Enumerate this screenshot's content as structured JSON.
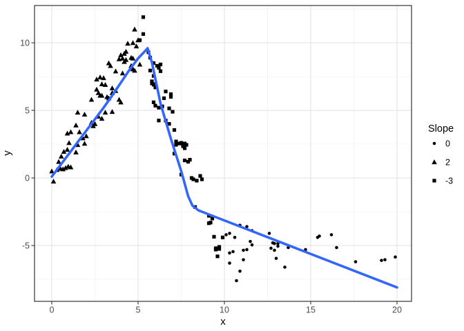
{
  "chart_data": {
    "type": "scatter",
    "title": "",
    "xlabel": "x",
    "ylabel": "y",
    "xlim": [
      -1,
      20.84
    ],
    "ylim": [
      -9.13,
      12.76
    ],
    "x_major_ticks": [
      0,
      5,
      10,
      15,
      20
    ],
    "y_major_ticks": [
      -5,
      0,
      5,
      10
    ],
    "x_minor_ticks": [
      2.5,
      7.5,
      12.5,
      17.5
    ],
    "y_minor_ticks": [
      -7.5,
      -2.5,
      2.5,
      7.5,
      12.5
    ],
    "grid": true,
    "colors": {
      "background": "#ffffff",
      "panel_background": "#ffffff",
      "panel_border": "#333333",
      "grid_major": "#e4e4e4",
      "grid_minor": "#f0f0f0",
      "points": "#000000",
      "smooth_line": "#3366ff",
      "tick_label": "#4d4d4d"
    },
    "legend": {
      "title": "Slope",
      "position": "right",
      "entries": [
        {
          "label": "0",
          "shape": "circle"
        },
        {
          "label": "2",
          "shape": "triangle"
        },
        {
          "label": "-3",
          "shape": "square"
        }
      ]
    },
    "series": [
      {
        "name": "2",
        "shape": "triangle",
        "points": [
          [
            0.0,
            0.5
          ],
          [
            0.1,
            -0.25
          ],
          [
            0.3,
            0.6
          ],
          [
            0.5,
            0.7
          ],
          [
            0.65,
            0.65
          ],
          [
            0.8,
            0.75
          ],
          [
            0.95,
            0.85
          ],
          [
            1.1,
            0.8
          ],
          [
            0.4,
            1.2
          ],
          [
            0.55,
            1.6
          ],
          [
            0.7,
            1.95
          ],
          [
            0.9,
            2.1
          ],
          [
            1.4,
            1.9
          ],
          [
            1.0,
            2.6
          ],
          [
            1.5,
            2.45
          ],
          [
            1.9,
            2.55
          ],
          [
            1.8,
            2.95
          ],
          [
            2.0,
            3.1
          ],
          [
            0.9,
            3.3
          ],
          [
            1.1,
            3.4
          ],
          [
            1.6,
            3.4
          ],
          [
            1.4,
            3.9
          ],
          [
            2.3,
            4.1
          ],
          [
            2.4,
            3.85
          ],
          [
            2.5,
            4.0
          ],
          [
            1.5,
            4.85
          ],
          [
            1.9,
            4.7
          ],
          [
            2.7,
            4.55
          ],
          [
            2.9,
            4.4
          ],
          [
            3.1,
            4.85
          ],
          [
            3.5,
            4.9
          ],
          [
            2.3,
            5.8
          ],
          [
            2.7,
            6.3
          ],
          [
            2.9,
            6.1
          ],
          [
            3.3,
            5.9
          ],
          [
            3.5,
            6.3
          ],
          [
            3.9,
            5.8
          ],
          [
            4.0,
            5.6
          ],
          [
            2.6,
            6.55
          ],
          [
            2.8,
            6.1
          ],
          [
            3.2,
            6.0
          ],
          [
            2.6,
            7.3
          ],
          [
            2.8,
            7.45
          ],
          [
            3.0,
            7.4
          ],
          [
            2.9,
            6.95
          ],
          [
            3.1,
            6.9
          ],
          [
            3.5,
            6.65
          ],
          [
            3.7,
            6.45
          ],
          [
            3.7,
            7.9
          ],
          [
            4.1,
            7.75
          ],
          [
            3.3,
            8.5
          ],
          [
            3.4,
            8.3
          ],
          [
            3.9,
            8.8
          ],
          [
            4.1,
            8.85
          ],
          [
            4.3,
            8.75
          ],
          [
            4.2,
            8.6
          ],
          [
            4.6,
            8.3
          ],
          [
            4.7,
            8.05
          ],
          [
            4.8,
            7.95
          ],
          [
            4.0,
            9.1
          ],
          [
            4.2,
            9.2
          ],
          [
            4.3,
            9.35
          ],
          [
            4.6,
            8.9
          ],
          [
            4.7,
            8.85
          ],
          [
            4.4,
            9.95
          ],
          [
            4.7,
            10.0
          ],
          [
            4.9,
            9.75
          ],
          [
            5.0,
            10.2
          ],
          [
            4.8,
            11.0
          ],
          [
            5.1,
            8.4
          ]
        ]
      },
      {
        "name": "-3",
        "shape": "square",
        "points": [
          [
            5.3,
            11.9
          ],
          [
            5.3,
            10.65
          ],
          [
            5.1,
            10.2
          ],
          [
            5.6,
            9.3
          ],
          [
            5.7,
            8.9
          ],
          [
            5.9,
            8.5
          ],
          [
            6.1,
            8.3
          ],
          [
            6.3,
            8.4
          ],
          [
            6.2,
            8.15
          ],
          [
            6.3,
            7.9
          ],
          [
            5.7,
            7.95
          ],
          [
            5.9,
            7.55
          ],
          [
            5.8,
            7.15
          ],
          [
            5.8,
            7.0
          ],
          [
            6.0,
            6.95
          ],
          [
            5.9,
            6.9
          ],
          [
            6.0,
            6.7
          ],
          [
            6.6,
            6.4
          ],
          [
            6.9,
            6.2
          ],
          [
            6.5,
            5.9
          ],
          [
            6.9,
            6.0
          ],
          [
            5.9,
            5.6
          ],
          [
            6.0,
            5.35
          ],
          [
            6.2,
            5.2
          ],
          [
            6.4,
            5.3
          ],
          [
            6.8,
            5.15
          ],
          [
            7.0,
            4.9
          ],
          [
            6.2,
            4.25
          ],
          [
            6.6,
            4.25
          ],
          [
            6.8,
            4.0
          ],
          [
            7.1,
            3.55
          ],
          [
            7.2,
            2.7
          ],
          [
            7.5,
            2.6
          ],
          [
            7.7,
            2.55
          ],
          [
            7.2,
            2.45
          ],
          [
            7.4,
            2.55
          ],
          [
            7.6,
            2.35
          ],
          [
            7.8,
            2.45
          ],
          [
            7.7,
            2.2
          ],
          [
            7.1,
            1.8
          ],
          [
            7.7,
            1.3
          ],
          [
            7.9,
            1.2
          ],
          [
            8.0,
            1.35
          ],
          [
            7.5,
            0.25
          ],
          [
            8.1,
            0.0
          ],
          [
            8.2,
            -0.1
          ],
          [
            8.4,
            -0.2
          ],
          [
            8.6,
            0.15
          ],
          [
            8.7,
            -0.1
          ],
          [
            8.3,
            -2.15
          ],
          [
            9.1,
            -2.8
          ],
          [
            9.3,
            -3.0
          ],
          [
            9.2,
            -3.3
          ],
          [
            9.1,
            -3.35
          ],
          [
            9.4,
            -4.35
          ],
          [
            9.9,
            -4.4
          ],
          [
            9.5,
            -5.2
          ],
          [
            9.7,
            -5.1
          ],
          [
            9.5,
            -5.3
          ],
          [
            9.7,
            -5.25
          ],
          [
            9.6,
            -5.8
          ]
        ]
      },
      {
        "name": "0",
        "shape": "circle",
        "points": [
          [
            10.1,
            -4.2
          ],
          [
            10.3,
            -4.1
          ],
          [
            10.6,
            -4.4
          ],
          [
            10.3,
            -5.55
          ],
          [
            10.5,
            -5.45
          ],
          [
            10.3,
            -6.3
          ],
          [
            10.9,
            -6.9
          ],
          [
            10.7,
            -7.6
          ],
          [
            10.9,
            -3.5
          ],
          [
            11.3,
            -3.6
          ],
          [
            11.6,
            -3.9
          ],
          [
            11.5,
            -4.7
          ],
          [
            11.6,
            -4.95
          ],
          [
            11.1,
            -5.35
          ],
          [
            11.3,
            -5.3
          ],
          [
            11.1,
            -6.05
          ],
          [
            12.6,
            -4.1
          ],
          [
            12.8,
            -4.8
          ],
          [
            12.9,
            -4.85
          ],
          [
            13.1,
            -4.85
          ],
          [
            12.7,
            -5.2
          ],
          [
            12.9,
            -5.35
          ],
          [
            13.0,
            -5.95
          ],
          [
            13.1,
            -5.05
          ],
          [
            13.5,
            -6.6
          ],
          [
            13.7,
            -5.15
          ],
          [
            14.7,
            -5.3
          ],
          [
            15.4,
            -4.4
          ],
          [
            15.5,
            -4.3
          ],
          [
            16.2,
            -4.2
          ],
          [
            16.5,
            -5.15
          ],
          [
            17.6,
            -6.2
          ],
          [
            19.1,
            -6.1
          ],
          [
            19.3,
            -6.05
          ],
          [
            19.9,
            -5.85
          ]
        ]
      }
    ],
    "smooth_line": {
      "color": "#3366ff",
      "points": [
        [
          0,
          0.1
        ],
        [
          0.5,
          0.95
        ],
        [
          1,
          1.8
        ],
        [
          1.5,
          2.65
        ],
        [
          2,
          3.5
        ],
        [
          2.5,
          4.35
        ],
        [
          3,
          5.2
        ],
        [
          3.5,
          6.1
        ],
        [
          4,
          7.05
        ],
        [
          4.5,
          8.0
        ],
        [
          5,
          8.85
        ],
        [
          5.3,
          9.25
        ],
        [
          5.55,
          9.6
        ],
        [
          5.8,
          8.55
        ],
        [
          6.3,
          5.5
        ],
        [
          6.9,
          2.9
        ],
        [
          7.5,
          0.5
        ],
        [
          7.9,
          -1.35
        ],
        [
          8.15,
          -2.05
        ],
        [
          8.5,
          -2.4
        ],
        [
          9.0,
          -2.65
        ],
        [
          20,
          -8.1
        ]
      ]
    }
  }
}
